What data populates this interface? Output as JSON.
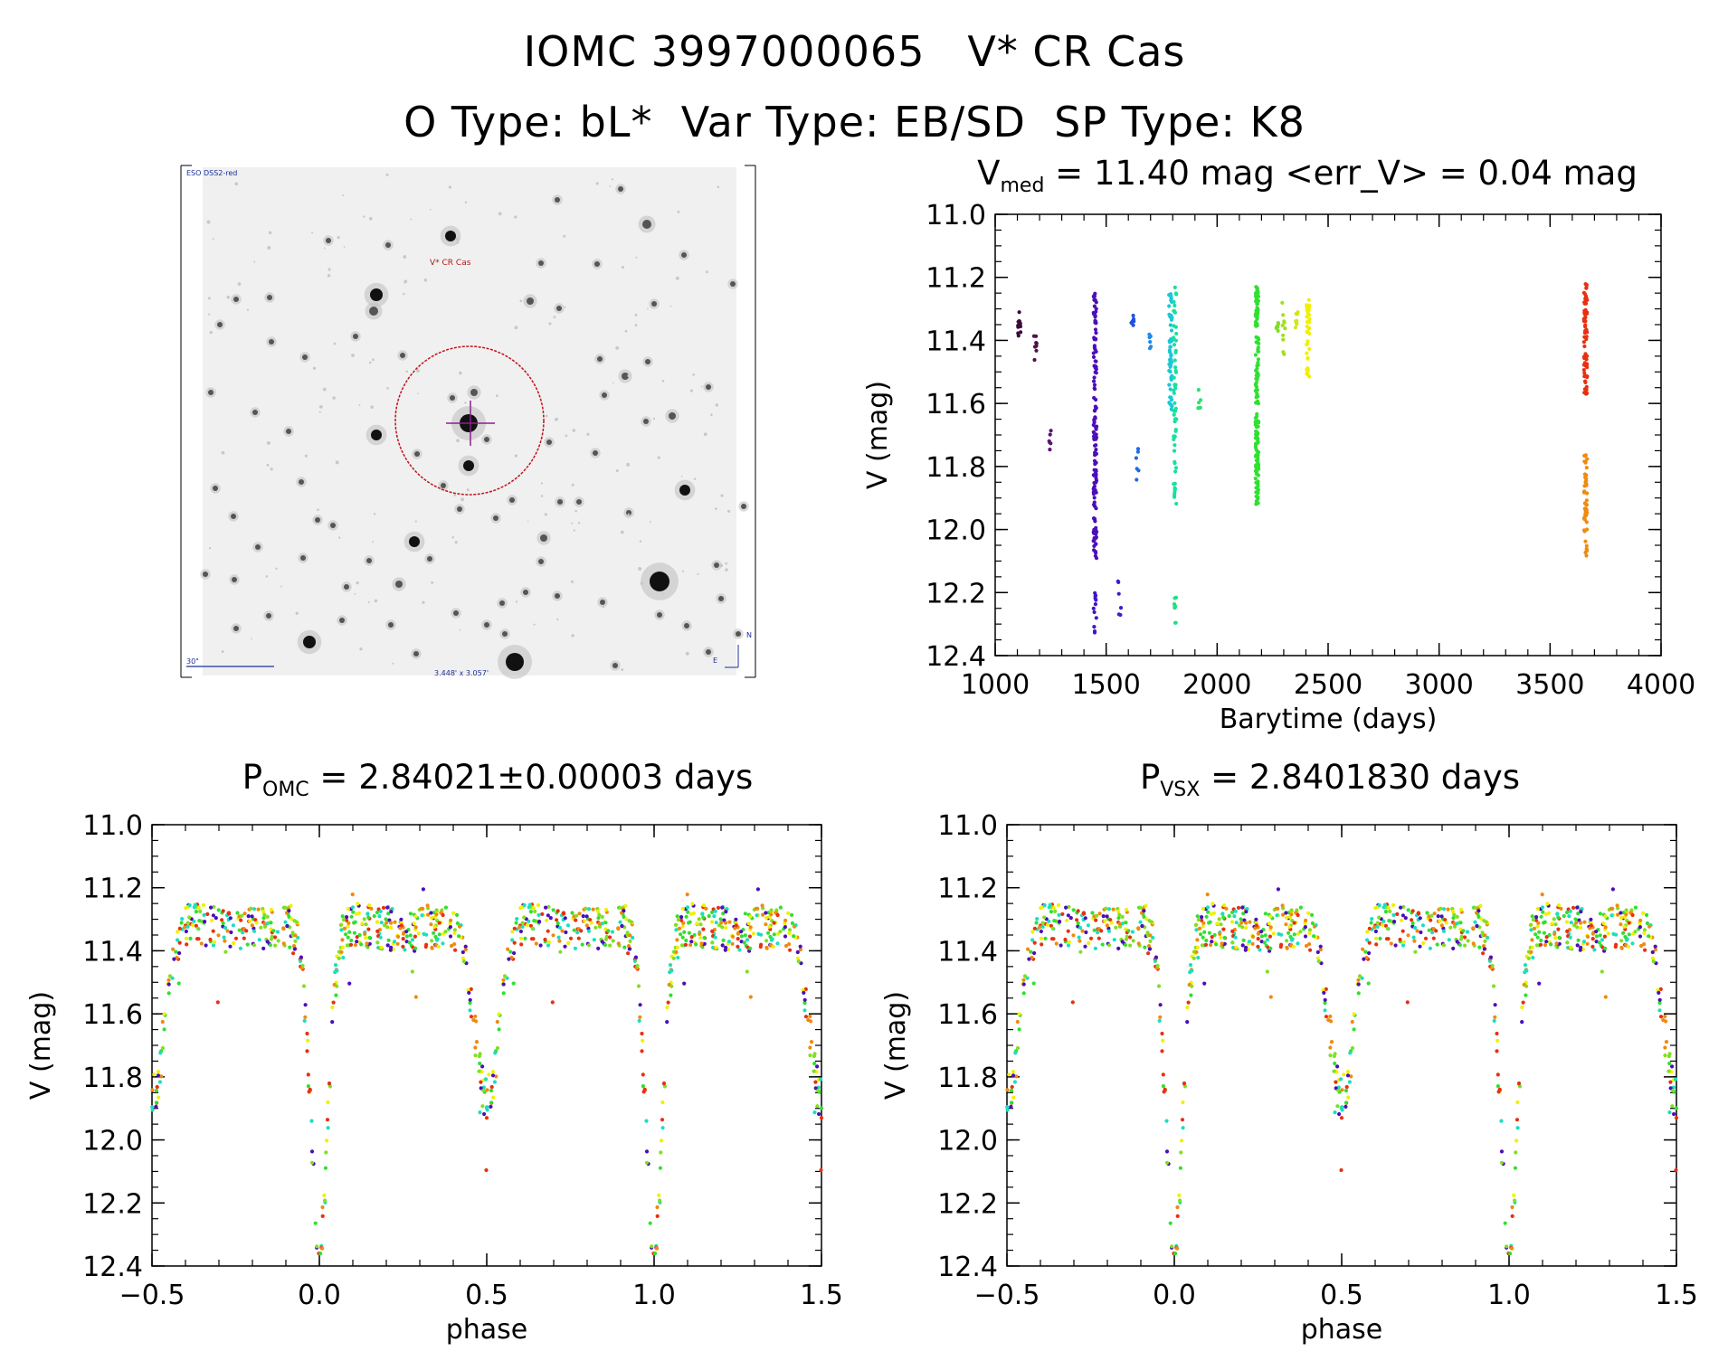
{
  "header": {
    "line1": "IOMC 3997000065   V* CR Cas",
    "line2": "O Type: bL*  Var Type: EB/SD  SP Type: K8"
  },
  "finder": {
    "survey_label": "ESO DSS2-red",
    "target_label": "V* CR Cas",
    "scale_label": "30\"",
    "fov_label": "3.448' x 3.057'",
    "east_label": "E",
    "north_label": "N"
  },
  "colors": {
    "circle": "#c0141c",
    "cross": "#8e1e8e",
    "label_blue": "#1c2f9a",
    "label_red": "#b01818"
  },
  "lightcurve_title": {
    "main": "V",
    "sub": "med",
    "rest": " = 11.40 mag <err_V> = 0.04 mag"
  },
  "phase1_title": {
    "main": "P",
    "sub": "OMC",
    "rest": " = 2.84021±0.00003 days"
  },
  "phase2_title": {
    "main": "P",
    "sub": "VSX",
    "rest": " = 2.8401830 days"
  },
  "chart_data": [
    {
      "id": "lightcurve",
      "type": "scatter",
      "xlabel": "Barytime (days)",
      "ylabel": "V (mag)",
      "xlim": [
        1000,
        4000
      ],
      "ylim": [
        12.4,
        11.0
      ],
      "xticks": [
        "1000",
        "1500",
        "2000",
        "2500",
        "3000",
        "3500",
        "4000"
      ],
      "yticks": [
        "11.0",
        "11.2",
        "11.4",
        "11.6",
        "11.8",
        "12.0",
        "12.2",
        "12.4"
      ],
      "series": [
        {
          "name": "seg1",
          "color": "#3a0a3a",
          "x": 1110,
          "ymin": 11.31,
          "ymax": 11.39,
          "n": 12
        },
        {
          "name": "seg2",
          "color": "#50104a",
          "x": 1180,
          "ymin": 11.38,
          "ymax": 11.47,
          "n": 8
        },
        {
          "name": "seg3",
          "color": "#5a1278",
          "x": 1250,
          "ymin": 11.67,
          "ymax": 11.76,
          "n": 6
        },
        {
          "name": "seg4",
          "color": "#4b0fb8",
          "x": 1450,
          "ymin": 11.25,
          "ymax": 12.1,
          "n": 140
        },
        {
          "name": "seg4b",
          "color": "#4414c8",
          "x": 1450,
          "ymin": 12.18,
          "ymax": 12.33,
          "n": 12
        },
        {
          "name": "seg5",
          "color": "#3a1ed0",
          "x": 1560,
          "ymin": 12.14,
          "ymax": 12.28,
          "n": 6
        },
        {
          "name": "seg6",
          "color": "#1e50e0",
          "x": 1620,
          "ymin": 11.31,
          "ymax": 11.36,
          "n": 6
        },
        {
          "name": "seg7",
          "color": "#1e6ae8",
          "x": 1640,
          "ymin": 11.74,
          "ymax": 11.85,
          "n": 6
        },
        {
          "name": "seg8",
          "color": "#1e8ae8",
          "x": 1700,
          "ymin": 11.38,
          "ymax": 11.44,
          "n": 6
        },
        {
          "name": "seg9",
          "color": "#18c8d8",
          "x": 1790,
          "ymin": 11.25,
          "ymax": 11.62,
          "n": 50
        },
        {
          "name": "seg10",
          "color": "#18e0a0",
          "x": 1810,
          "ymin": 11.23,
          "ymax": 11.94,
          "n": 60
        },
        {
          "name": "seg10b",
          "color": "#20e080",
          "x": 1810,
          "ymin": 12.2,
          "ymax": 12.3,
          "n": 8
        },
        {
          "name": "seg11",
          "color": "#30e070",
          "x": 1920,
          "ymin": 11.55,
          "ymax": 11.62,
          "n": 6
        },
        {
          "name": "seg12",
          "color": "#30e030",
          "x": 2180,
          "ymin": 11.22,
          "ymax": 11.92,
          "n": 160
        },
        {
          "name": "seg13",
          "color": "#80e020",
          "x": 2270,
          "ymin": 11.33,
          "ymax": 11.38,
          "n": 8
        },
        {
          "name": "seg14",
          "color": "#a0e020",
          "x": 2300,
          "ymin": 11.28,
          "ymax": 11.5,
          "n": 10
        },
        {
          "name": "seg15",
          "color": "#d0e818",
          "x": 2360,
          "ymin": 11.3,
          "ymax": 11.36,
          "n": 8
        },
        {
          "name": "seg16",
          "color": "#f0f000",
          "x": 2410,
          "ymin": 11.26,
          "ymax": 11.52,
          "n": 40
        },
        {
          "name": "seg17",
          "color": "#e83010",
          "x": 3660,
          "ymin": 11.21,
          "ymax": 11.58,
          "n": 70
        },
        {
          "name": "seg18",
          "color": "#f08a10",
          "x": 3660,
          "ymin": 11.76,
          "ymax": 12.09,
          "n": 50
        }
      ]
    },
    {
      "id": "phase_omc",
      "type": "scatter",
      "xlabel": "phase",
      "ylabel": "V (mag)",
      "xlim": [
        -0.5,
        1.5
      ],
      "ylim": [
        12.4,
        11.0
      ],
      "xticks": [
        "−0.5",
        "0.0",
        "0.5",
        "1.0",
        "1.5"
      ],
      "yticks": [
        "11.0",
        "11.2",
        "11.4",
        "11.6",
        "11.8",
        "12.0",
        "12.2",
        "12.4"
      ],
      "period_days": 2.84021,
      "curve": {
        "max_mag": 11.32,
        "primary_min_phase": 0.0,
        "primary_min_mag": 12.3,
        "secondary_min_phase": 0.5,
        "secondary_min_mag": 11.82
      },
      "point_colors": [
        "#4b0fb8",
        "#30e030",
        "#f08a10",
        "#18e0c0",
        "#f0f000",
        "#e83010",
        "#80e020"
      ]
    },
    {
      "id": "phase_vsx",
      "type": "scatter",
      "xlabel": "phase",
      "ylabel": "V (mag)",
      "xlim": [
        -0.5,
        1.5
      ],
      "ylim": [
        12.4,
        11.0
      ],
      "xticks": [
        "−0.5",
        "0.0",
        "0.5",
        "1.0",
        "1.5"
      ],
      "yticks": [
        "11.0",
        "11.2",
        "11.4",
        "11.6",
        "11.8",
        "12.0",
        "12.2",
        "12.4"
      ],
      "period_days": 2.840183,
      "curve": {
        "max_mag": 11.32,
        "primary_min_phase": 0.0,
        "primary_min_mag": 12.3,
        "secondary_min_phase": 0.5,
        "secondary_min_mag": 11.82
      },
      "point_colors": [
        "#4b0fb8",
        "#30e030",
        "#f08a10",
        "#18e0c0",
        "#f0f000",
        "#e83010",
        "#80e020"
      ]
    }
  ]
}
